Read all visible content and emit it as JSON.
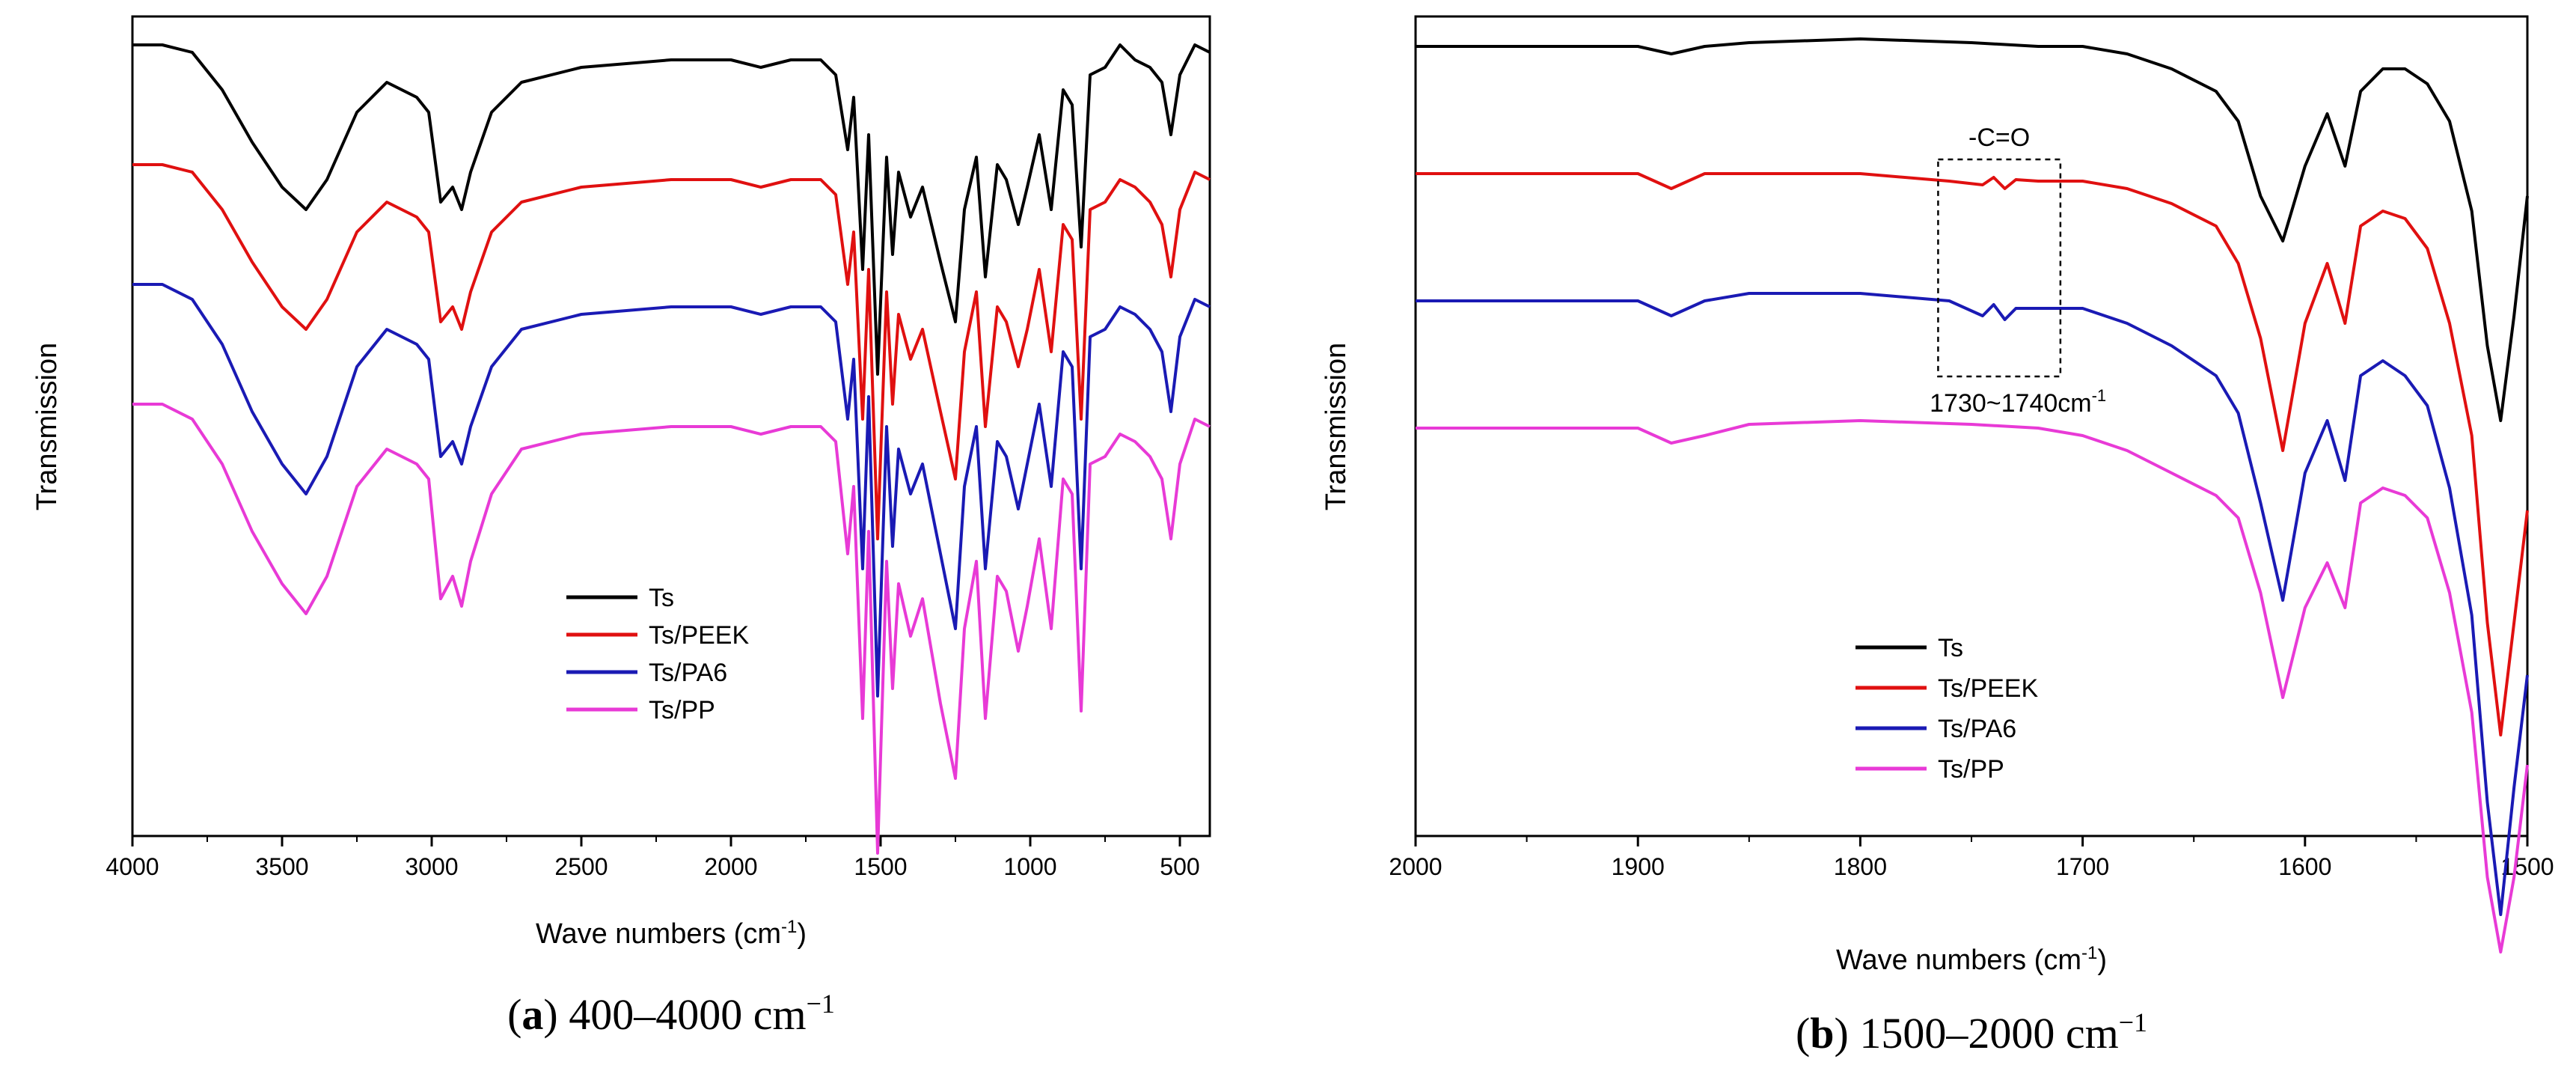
{
  "chart_data": [
    {
      "type": "line",
      "panel": "a",
      "caption_letter": "a",
      "caption_text": " 400–4000 cm",
      "caption_sup": "−1",
      "xlabel": "Wave numbers (cm",
      "xlabel_sup": "-1",
      "xlabel_end": ")",
      "ylabel": "Transmission",
      "xlim": [
        4000,
        400
      ],
      "ylim": [
        0,
        1
      ],
      "xticks": [
        4000,
        3500,
        3000,
        2500,
        2000,
        1500,
        1000,
        500
      ],
      "xtick_labels": [
        "4000",
        "3500",
        "3000",
        "2500",
        "2000",
        "1500",
        "1000",
        "500"
      ],
      "legend_position": "bottom-center",
      "series": [
        {
          "name": "Ts",
          "color": "#000000",
          "offset": 0.0,
          "x": [
            4000,
            3900,
            3800,
            3700,
            3600,
            3500,
            3420,
            3350,
            3250,
            3150,
            3050,
            3010,
            2970,
            2930,
            2900,
            2870,
            2800,
            2700,
            2500,
            2200,
            2000,
            1900,
            1800,
            1700,
            1650,
            1610,
            1590,
            1560,
            1540,
            1510,
            1480,
            1460,
            1440,
            1400,
            1360,
            1300,
            1250,
            1220,
            1180,
            1150,
            1110,
            1080,
            1040,
            1010,
            970,
            930,
            890,
            860,
            830,
            800,
            750,
            700,
            650,
            600,
            560,
            530,
            500,
            450,
            400
          ],
          "y": [
            0.0,
            0.0,
            0.01,
            0.06,
            0.13,
            0.19,
            0.22,
            0.18,
            0.09,
            0.05,
            0.07,
            0.09,
            0.21,
            0.19,
            0.22,
            0.17,
            0.09,
            0.05,
            0.03,
            0.02,
            0.02,
            0.03,
            0.02,
            0.02,
            0.04,
            0.14,
            0.07,
            0.3,
            0.12,
            0.44,
            0.15,
            0.28,
            0.17,
            0.23,
            0.19,
            0.29,
            0.37,
            0.22,
            0.15,
            0.31,
            0.16,
            0.18,
            0.24,
            0.19,
            0.12,
            0.22,
            0.06,
            0.08,
            0.27,
            0.04,
            0.03,
            0.0,
            0.02,
            0.03,
            0.05,
            0.12,
            0.04,
            0.0,
            0.01
          ]
        },
        {
          "name": "Ts/PEEK",
          "color": "#e01010",
          "offset": 0.16,
          "x": [
            4000,
            3900,
            3800,
            3700,
            3600,
            3500,
            3420,
            3350,
            3250,
            3150,
            3050,
            3010,
            2970,
            2930,
            2900,
            2870,
            2800,
            2700,
            2500,
            2200,
            2000,
            1900,
            1800,
            1700,
            1650,
            1610,
            1590,
            1560,
            1540,
            1510,
            1480,
            1460,
            1440,
            1400,
            1360,
            1300,
            1250,
            1220,
            1180,
            1150,
            1110,
            1080,
            1040,
            1010,
            970,
            930,
            890,
            860,
            830,
            800,
            750,
            700,
            650,
            600,
            560,
            530,
            500,
            450,
            400
          ],
          "y": [
            0.0,
            0.0,
            0.01,
            0.06,
            0.13,
            0.19,
            0.22,
            0.18,
            0.09,
            0.05,
            0.07,
            0.09,
            0.21,
            0.19,
            0.22,
            0.17,
            0.09,
            0.05,
            0.03,
            0.02,
            0.02,
            0.03,
            0.02,
            0.02,
            0.04,
            0.16,
            0.09,
            0.34,
            0.14,
            0.5,
            0.17,
            0.32,
            0.2,
            0.26,
            0.22,
            0.33,
            0.42,
            0.25,
            0.17,
            0.35,
            0.19,
            0.21,
            0.27,
            0.22,
            0.14,
            0.25,
            0.08,
            0.1,
            0.34,
            0.06,
            0.05,
            0.02,
            0.03,
            0.05,
            0.08,
            0.15,
            0.06,
            0.01,
            0.02
          ]
        },
        {
          "name": "Ts/PA6",
          "color": "#1a1ab4",
          "offset": 0.32,
          "x": [
            4000,
            3900,
            3800,
            3700,
            3600,
            3500,
            3420,
            3350,
            3250,
            3150,
            3050,
            3010,
            2970,
            2930,
            2900,
            2870,
            2800,
            2700,
            2500,
            2200,
            2000,
            1900,
            1800,
            1700,
            1650,
            1610,
            1590,
            1560,
            1540,
            1510,
            1480,
            1460,
            1440,
            1400,
            1360,
            1300,
            1250,
            1220,
            1180,
            1150,
            1110,
            1080,
            1040,
            1010,
            970,
            930,
            890,
            860,
            830,
            800,
            750,
            700,
            650,
            600,
            560,
            530,
            500,
            450,
            400
          ],
          "y": [
            0.0,
            0.0,
            0.02,
            0.08,
            0.17,
            0.24,
            0.28,
            0.23,
            0.11,
            0.06,
            0.08,
            0.1,
            0.23,
            0.21,
            0.24,
            0.19,
            0.11,
            0.06,
            0.04,
            0.03,
            0.03,
            0.04,
            0.03,
            0.03,
            0.05,
            0.18,
            0.1,
            0.38,
            0.15,
            0.55,
            0.19,
            0.35,
            0.22,
            0.28,
            0.24,
            0.36,
            0.46,
            0.27,
            0.19,
            0.38,
            0.21,
            0.23,
            0.3,
            0.24,
            0.16,
            0.27,
            0.09,
            0.11,
            0.38,
            0.07,
            0.06,
            0.03,
            0.04,
            0.06,
            0.09,
            0.17,
            0.07,
            0.02,
            0.03
          ]
        },
        {
          "name": "Ts/PP",
          "color": "#e83ad6",
          "offset": 0.48,
          "x": [
            4000,
            3900,
            3800,
            3700,
            3600,
            3500,
            3420,
            3350,
            3250,
            3150,
            3050,
            3010,
            2970,
            2930,
            2900,
            2870,
            2800,
            2700,
            2500,
            2200,
            2000,
            1900,
            1800,
            1700,
            1650,
            1610,
            1590,
            1560,
            1540,
            1510,
            1480,
            1460,
            1440,
            1400,
            1360,
            1300,
            1250,
            1220,
            1180,
            1150,
            1110,
            1080,
            1040,
            1010,
            970,
            930,
            890,
            860,
            830,
            800,
            750,
            700,
            650,
            600,
            560,
            530,
            500,
            450,
            400
          ],
          "y": [
            0.0,
            0.0,
            0.02,
            0.08,
            0.17,
            0.24,
            0.28,
            0.23,
            0.11,
            0.06,
            0.08,
            0.1,
            0.26,
            0.23,
            0.27,
            0.21,
            0.12,
            0.06,
            0.04,
            0.03,
            0.03,
            0.04,
            0.03,
            0.03,
            0.05,
            0.2,
            0.11,
            0.42,
            0.17,
            0.6,
            0.21,
            0.38,
            0.24,
            0.31,
            0.26,
            0.4,
            0.5,
            0.3,
            0.21,
            0.42,
            0.23,
            0.25,
            0.33,
            0.27,
            0.18,
            0.3,
            0.1,
            0.12,
            0.41,
            0.08,
            0.07,
            0.04,
            0.05,
            0.07,
            0.1,
            0.18,
            0.08,
            0.02,
            0.03
          ]
        }
      ]
    },
    {
      "type": "line",
      "panel": "b",
      "caption_letter": "b",
      "caption_text": " 1500–2000 cm",
      "caption_sup": "−1",
      "xlabel": "Wave numbers (cm",
      "xlabel_sup": "-1",
      "xlabel_end": ")",
      "ylabel": "Transmission",
      "xlim": [
        2000,
        1500
      ],
      "ylim": [
        0,
        1
      ],
      "xticks": [
        2000,
        1900,
        1800,
        1700,
        1600,
        1500
      ],
      "xtick_labels": [
        "2000",
        "1900",
        "1800",
        "1700",
        "1600",
        "1500"
      ],
      "legend_position": "bottom-center",
      "annotation": {
        "label": "-C=O",
        "range_label": "1730~1740cm",
        "range_sup": "-1",
        "x_range": [
          1765,
          1710
        ]
      },
      "series": [
        {
          "name": "Ts",
          "color": "#000000",
          "offset": 0.0,
          "x": [
            2000,
            1950,
            1900,
            1885,
            1870,
            1850,
            1800,
            1750,
            1720,
            1700,
            1680,
            1660,
            1640,
            1630,
            1620,
            1610,
            1600,
            1590,
            1582,
            1575,
            1565,
            1555,
            1545,
            1535,
            1525,
            1518,
            1512,
            1506,
            1500
          ],
          "y": [
            0.0,
            0.0,
            0.0,
            0.01,
            0.0,
            -0.005,
            -0.01,
            -0.005,
            0.0,
            0.0,
            0.01,
            0.03,
            0.06,
            0.1,
            0.2,
            0.26,
            0.16,
            0.09,
            0.16,
            0.06,
            0.03,
            0.03,
            0.05,
            0.1,
            0.22,
            0.4,
            0.5,
            0.36,
            0.2
          ]
        },
        {
          "name": "Ts/PEEK",
          "color": "#e01010",
          "offset": 0.17,
          "x": [
            2000,
            1950,
            1900,
            1885,
            1870,
            1850,
            1800,
            1760,
            1745,
            1740,
            1735,
            1730,
            1720,
            1700,
            1680,
            1660,
            1640,
            1630,
            1620,
            1610,
            1600,
            1590,
            1582,
            1575,
            1565,
            1555,
            1545,
            1535,
            1525,
            1518,
            1512,
            1506,
            1500
          ],
          "y": [
            0.0,
            0.0,
            0.0,
            0.02,
            0.0,
            0.0,
            0.0,
            0.01,
            0.015,
            0.005,
            0.02,
            0.008,
            0.01,
            0.01,
            0.02,
            0.04,
            0.07,
            0.12,
            0.22,
            0.37,
            0.2,
            0.12,
            0.2,
            0.07,
            0.05,
            0.06,
            0.1,
            0.2,
            0.35,
            0.6,
            0.75,
            0.6,
            0.45
          ]
        },
        {
          "name": "Ts/PA6",
          "color": "#1a1ab4",
          "offset": 0.34,
          "x": [
            2000,
            1950,
            1900,
            1885,
            1870,
            1850,
            1800,
            1760,
            1745,
            1740,
            1735,
            1730,
            1720,
            1700,
            1680,
            1660,
            1640,
            1630,
            1620,
            1610,
            1600,
            1590,
            1582,
            1575,
            1565,
            1555,
            1545,
            1535,
            1525,
            1518,
            1512,
            1506,
            1500
          ],
          "y": [
            0.0,
            0.0,
            0.0,
            0.02,
            0.0,
            -0.01,
            -0.01,
            0.0,
            0.02,
            0.005,
            0.025,
            0.01,
            0.01,
            0.01,
            0.03,
            0.06,
            0.1,
            0.15,
            0.27,
            0.4,
            0.23,
            0.16,
            0.24,
            0.1,
            0.08,
            0.1,
            0.14,
            0.25,
            0.42,
            0.67,
            0.82,
            0.65,
            0.5
          ]
        },
        {
          "name": "Ts/PP",
          "color": "#e83ad6",
          "offset": 0.51,
          "x": [
            2000,
            1950,
            1900,
            1885,
            1870,
            1850,
            1800,
            1750,
            1720,
            1700,
            1680,
            1660,
            1640,
            1630,
            1620,
            1610,
            1600,
            1590,
            1582,
            1575,
            1565,
            1555,
            1545,
            1535,
            1525,
            1518,
            1512,
            1506,
            1500
          ],
          "y": [
            0.0,
            0.0,
            0.0,
            0.02,
            0.01,
            -0.005,
            -0.01,
            -0.005,
            0.0,
            0.01,
            0.03,
            0.06,
            0.09,
            0.12,
            0.22,
            0.36,
            0.24,
            0.18,
            0.24,
            0.1,
            0.08,
            0.09,
            0.12,
            0.22,
            0.38,
            0.6,
            0.7,
            0.6,
            0.45
          ]
        }
      ]
    }
  ]
}
